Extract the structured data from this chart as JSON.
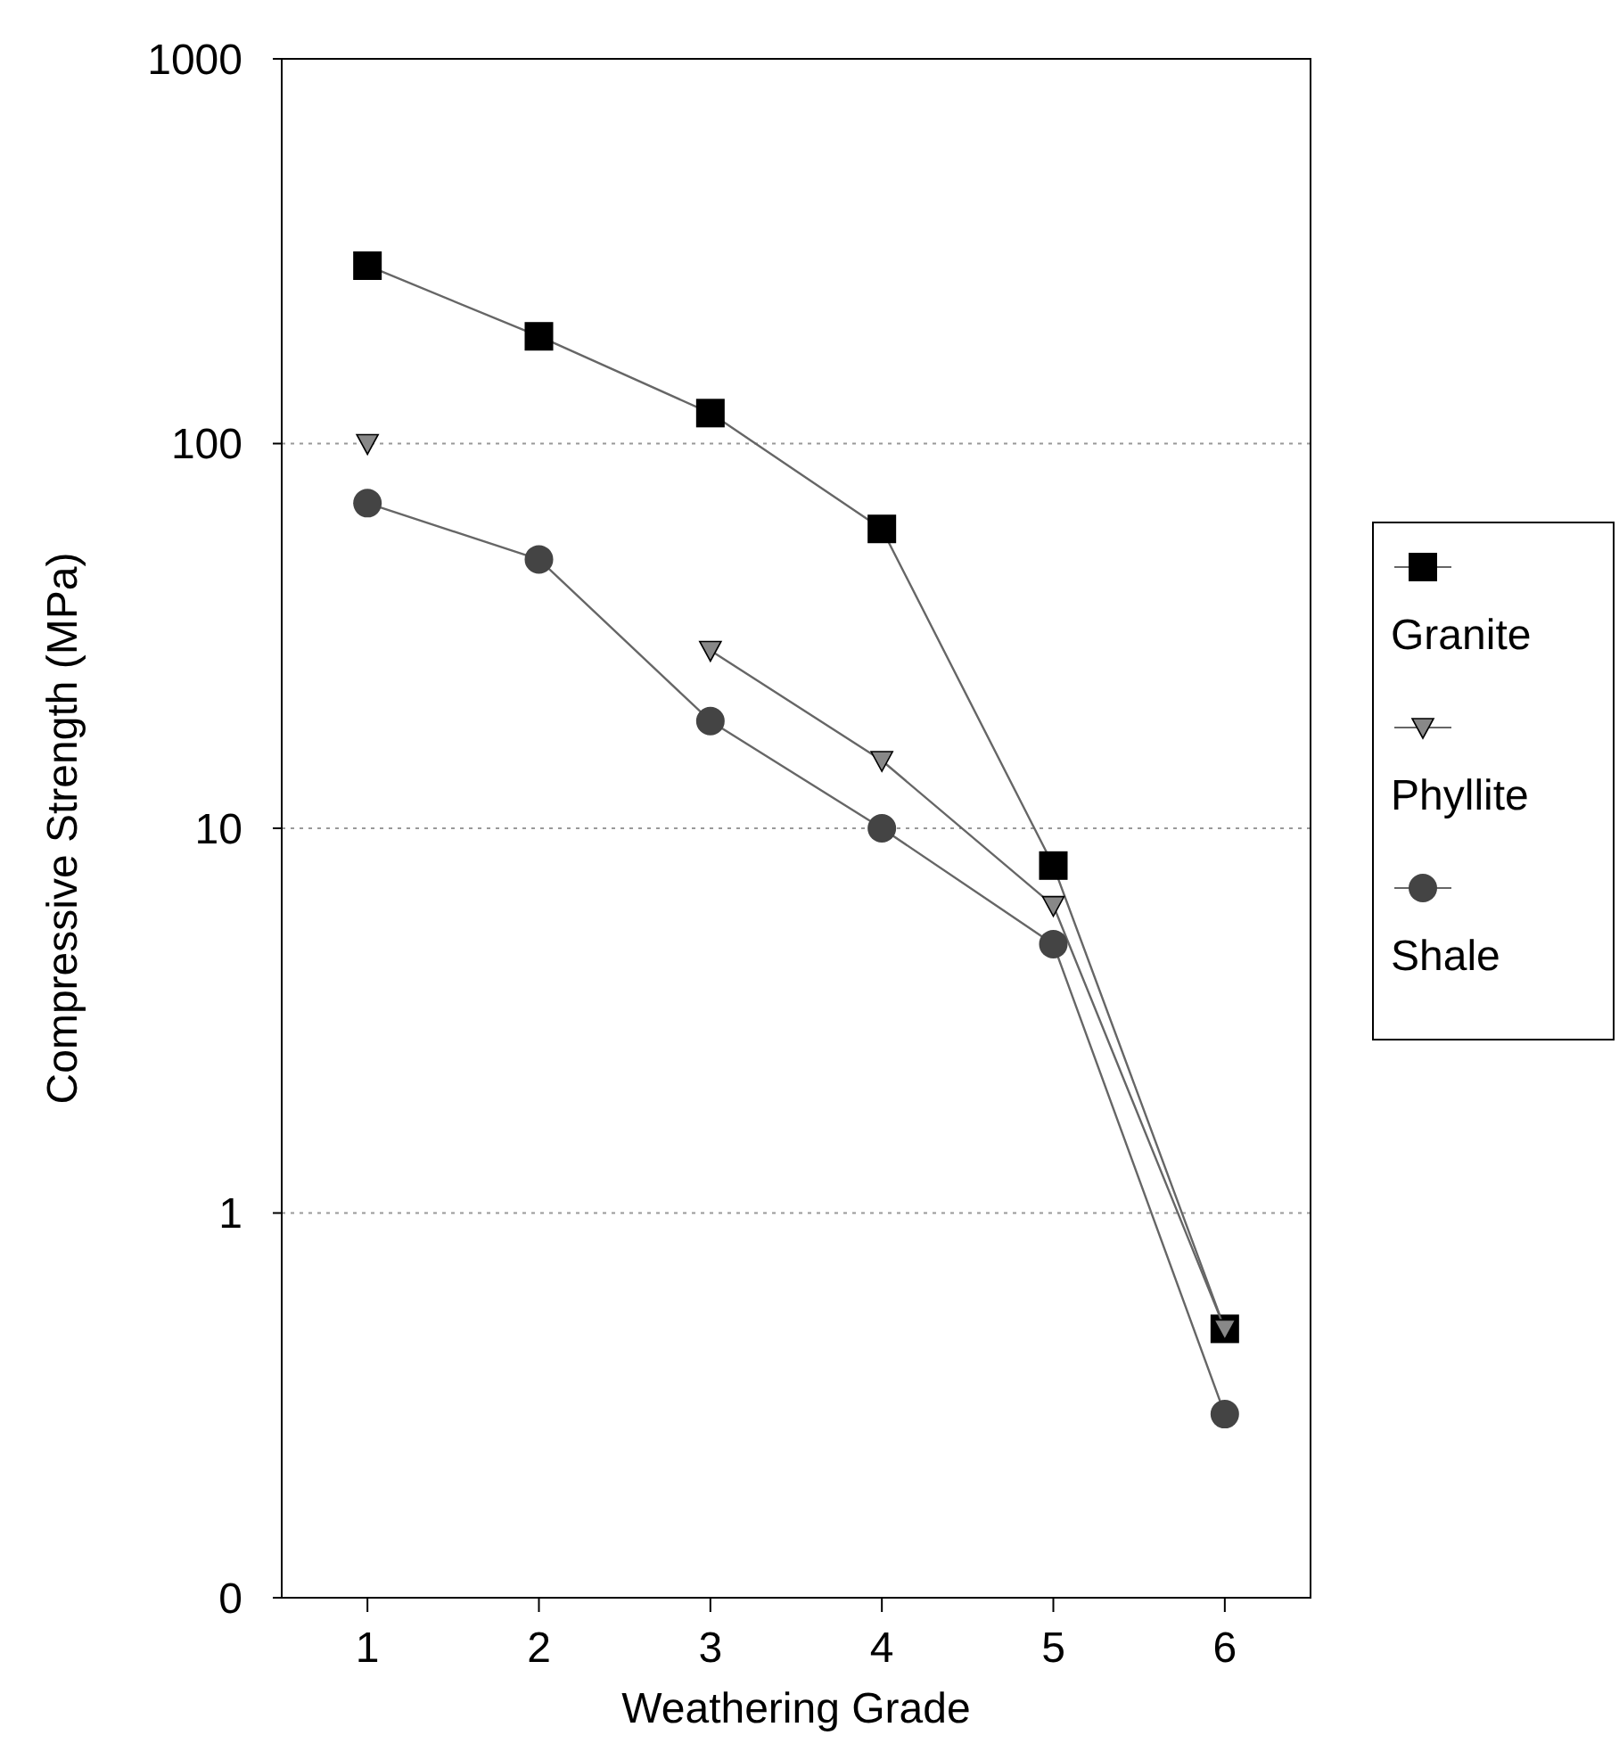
{
  "chart_data": {
    "type": "line",
    "xlabel": "Weathering Grade",
    "ylabel": "Compressive Strength (MPa)",
    "x": [
      1,
      2,
      3,
      4,
      5,
      6
    ],
    "series": [
      {
        "name": "Granite",
        "color": "#000000",
        "marker": "square",
        "values": [
          290,
          190,
          120,
          60,
          8,
          0.5
        ]
      },
      {
        "name": "Phyllite",
        "color": "#888888",
        "marker": "triangle",
        "values": [
          100,
          null,
          29,
          15,
          6.3,
          0.5
        ]
      },
      {
        "name": "Shale",
        "color": "#444444",
        "marker": "circle",
        "values": [
          70,
          50,
          19,
          10,
          5,
          0.3
        ]
      }
    ],
    "log": "y",
    "xlim": [
      0.5,
      6.5
    ],
    "ylim": [
      0.1,
      1000
    ],
    "xticks": [
      1,
      2,
      3,
      4,
      5,
      6
    ],
    "yticks": [
      {
        "value": 0.1,
        "label": "0"
      },
      1,
      10,
      100,
      1000
    ],
    "grid": "y",
    "legend": "right"
  }
}
